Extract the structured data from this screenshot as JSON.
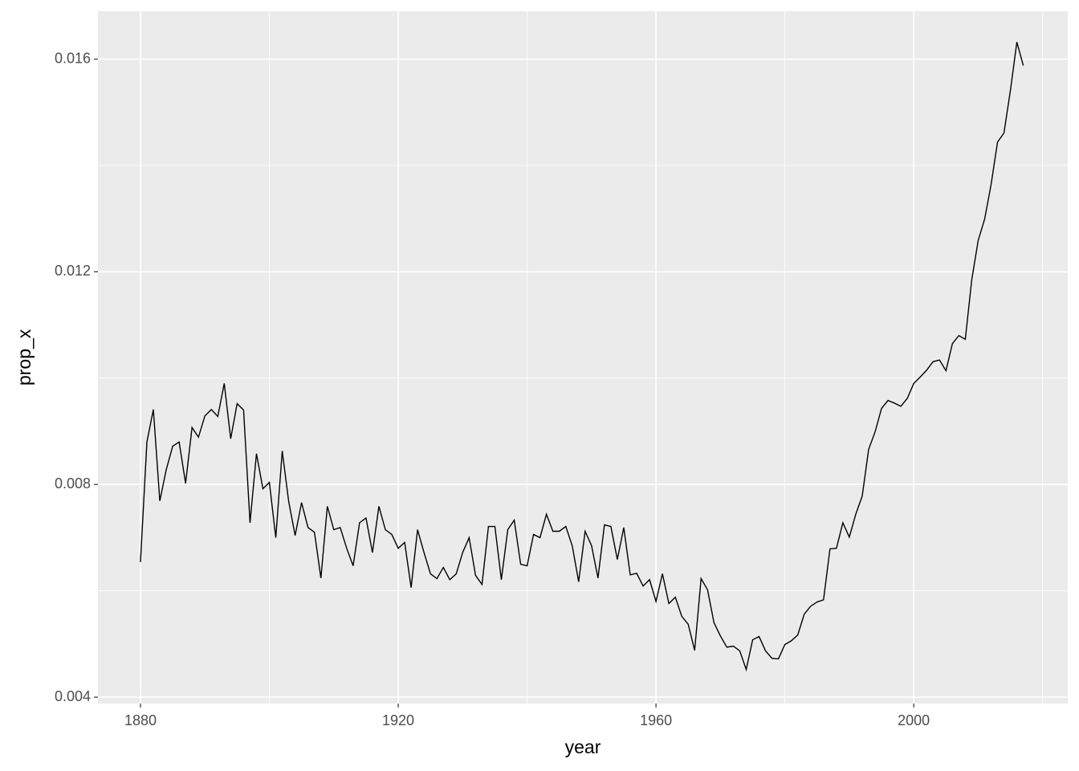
{
  "chart_data": {
    "type": "line",
    "x_label": "year",
    "y_label": "prop_x",
    "color": "#000000",
    "grid": true,
    "xlim": [
      1873.4,
      2023.9
    ],
    "ylim": [
      0.00388,
      0.0169
    ],
    "xticks": [
      1880,
      1920,
      1960,
      2000
    ],
    "yticks": [
      0.004,
      0.008,
      0.012,
      0.016
    ],
    "x_minor_grid": [
      1900,
      1940,
      1980,
      2020
    ],
    "y_minor_grid": [
      0.006,
      0.01,
      0.014
    ],
    "x": [
      1880,
      1881,
      1882,
      1883,
      1884,
      1885,
      1886,
      1887,
      1888,
      1889,
      1890,
      1891,
      1892,
      1893,
      1894,
      1895,
      1896,
      1897,
      1898,
      1899,
      1900,
      1901,
      1902,
      1903,
      1904,
      1905,
      1906,
      1907,
      1908,
      1909,
      1910,
      1911,
      1912,
      1913,
      1914,
      1915,
      1916,
      1917,
      1918,
      1919,
      1920,
      1921,
      1922,
      1923,
      1924,
      1925,
      1926,
      1927,
      1928,
      1929,
      1930,
      1931,
      1932,
      1933,
      1934,
      1935,
      1936,
      1937,
      1938,
      1939,
      1940,
      1941,
      1942,
      1943,
      1944,
      1945,
      1946,
      1947,
      1948,
      1949,
      1950,
      1951,
      1952,
      1953,
      1954,
      1955,
      1956,
      1957,
      1958,
      1959,
      1960,
      1961,
      1962,
      1963,
      1964,
      1965,
      1966,
      1967,
      1968,
      1969,
      1970,
      1971,
      1972,
      1973,
      1974,
      1975,
      1976,
      1977,
      1978,
      1979,
      1980,
      1981,
      1982,
      1983,
      1984,
      1985,
      1986,
      1987,
      1988,
      1989,
      1990,
      1991,
      1992,
      1993,
      1994,
      1995,
      1996,
      1997,
      1998,
      1999,
      2000,
      2001,
      2002,
      2003,
      2004,
      2005,
      2006,
      2007,
      2008,
      2009,
      2010,
      2011,
      2012,
      2013,
      2014,
      2015,
      2016,
      2017
    ],
    "values": [
      0.00654,
      0.0088,
      0.00941,
      0.00769,
      0.00828,
      0.00872,
      0.0088,
      0.00802,
      0.00907,
      0.00889,
      0.00929,
      0.00941,
      0.00928,
      0.0099,
      0.00886,
      0.00952,
      0.0094,
      0.00728,
      0.00858,
      0.00792,
      0.00804,
      0.007,
      0.00863,
      0.00768,
      0.00704,
      0.00766,
      0.00719,
      0.0071,
      0.00624,
      0.00759,
      0.00715,
      0.00719,
      0.0068,
      0.00647,
      0.00728,
      0.00737,
      0.00672,
      0.00759,
      0.00715,
      0.00706,
      0.0068,
      0.00691,
      0.00606,
      0.00715,
      0.00672,
      0.00632,
      0.00623,
      0.00644,
      0.00621,
      0.00632,
      0.00672,
      0.007,
      0.00629,
      0.00612,
      0.00721,
      0.00721,
      0.00621,
      0.00715,
      0.00733,
      0.0065,
      0.00647,
      0.00706,
      0.007,
      0.00744,
      0.00712,
      0.00712,
      0.00721,
      0.00685,
      0.00617,
      0.00712,
      0.00685,
      0.00624,
      0.00724,
      0.00721,
      0.00659,
      0.00719,
      0.0063,
      0.00633,
      0.00609,
      0.00621,
      0.0058,
      0.00632,
      0.00576,
      0.00588,
      0.00552,
      0.00537,
      0.00488,
      0.00623,
      0.00602,
      0.0054,
      0.00515,
      0.00494,
      0.00496,
      0.00487,
      0.00452,
      0.00508,
      0.00514,
      0.00487,
      0.00473,
      0.00472,
      0.00499,
      0.00506,
      0.00517,
      0.00556,
      0.00571,
      0.00579,
      0.00583,
      0.00679,
      0.0068,
      0.00728,
      0.00701,
      0.00744,
      0.00778,
      0.00866,
      0.00899,
      0.00943,
      0.00958,
      0.00953,
      0.00947,
      0.00962,
      0.0099,
      0.01002,
      0.01015,
      0.01031,
      0.01034,
      0.01014,
      0.01065,
      0.0108,
      0.01073,
      0.01185,
      0.01259,
      0.01299,
      0.01364,
      0.01444,
      0.01461,
      0.01541,
      0.01632,
      0.01588
    ]
  }
}
